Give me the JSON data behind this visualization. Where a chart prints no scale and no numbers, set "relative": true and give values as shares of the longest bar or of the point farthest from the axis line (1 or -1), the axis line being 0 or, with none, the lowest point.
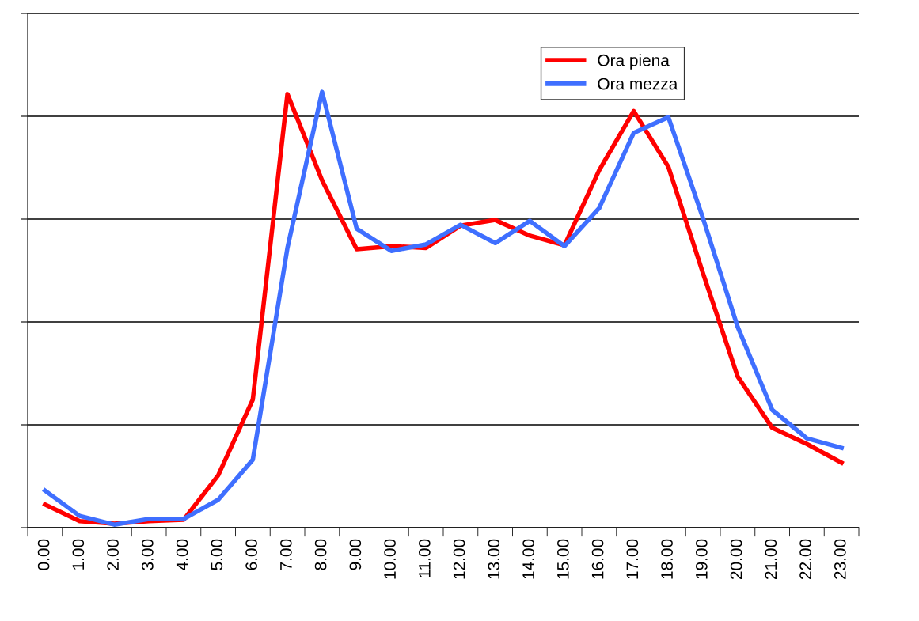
{
  "chart_data": {
    "type": "line",
    "relative": true,
    "categories": [
      "0.00",
      "1.00",
      "2.00",
      "3.00",
      "4.00",
      "5.00",
      "6.00",
      "7.00",
      "8.00",
      "9.00",
      "10.00",
      "11.00",
      "12.00",
      "13.00",
      "14.00",
      "15.00",
      "16.00",
      "17.00",
      "18.00",
      "19.00",
      "20.00",
      "21.00",
      "22.00",
      "23.00"
    ],
    "series": [
      {
        "name": "Ora piena",
        "color": "#ff0000",
        "values": [
          0.053,
          0.015,
          0.009,
          0.015,
          0.018,
          0.12,
          0.294,
          0.995,
          0.797,
          0.639,
          0.646,
          0.642,
          0.693,
          0.706,
          0.67,
          0.648,
          0.82,
          0.956,
          0.828,
          0.584,
          0.347,
          0.229,
          0.192,
          0.149
        ]
      },
      {
        "name": "Ora mezza",
        "color": "#3f6fff",
        "values": [
          0.085,
          0.027,
          0.007,
          0.02,
          0.02,
          0.064,
          0.156,
          0.642,
          1.0,
          0.686,
          0.635,
          0.65,
          0.695,
          0.653,
          0.704,
          0.646,
          0.733,
          0.906,
          0.942,
          0.71,
          0.461,
          0.27,
          0.205,
          0.183
        ]
      }
    ],
    "grid": "y",
    "legend": "top right",
    "marker": "none",
    "line_style": "solid"
  }
}
